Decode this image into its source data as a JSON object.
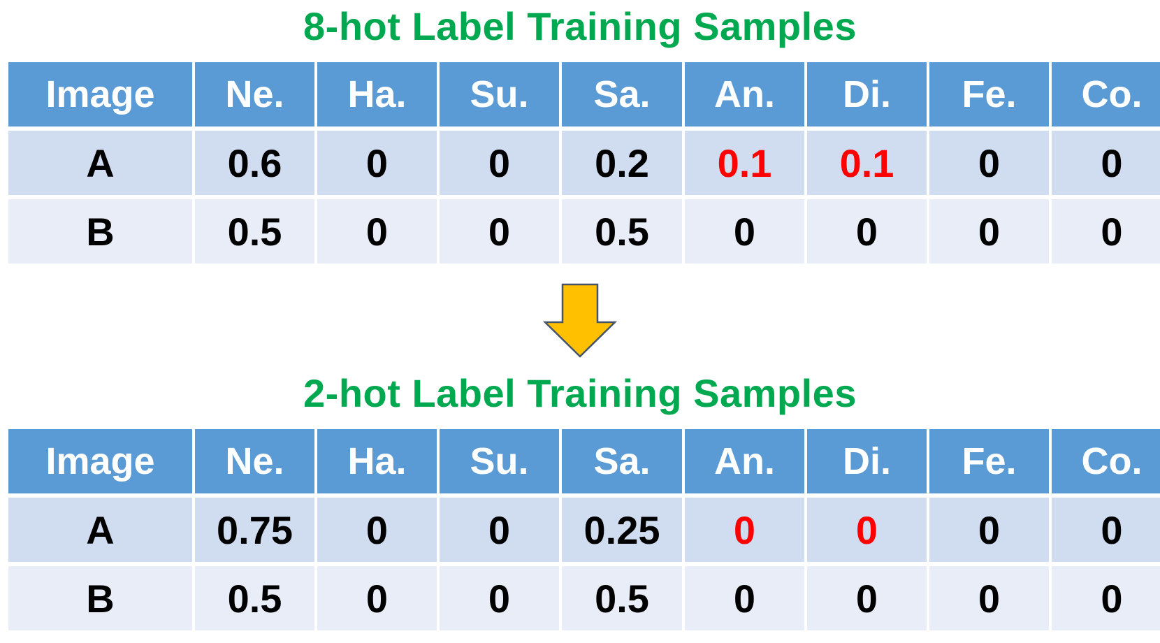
{
  "colors": {
    "title": "#00a84f",
    "header_bg": "#5b9bd5",
    "header_text": "#ffffff",
    "row_a_bg": "#d0dcef",
    "row_b_bg": "#e8edf7",
    "highlight": "#ff0000",
    "arrow_fill": "#ffc000",
    "arrow_stroke": "#44546a"
  },
  "top": {
    "title": "8-hot Label Training Samples",
    "headers": [
      "Image",
      "Ne.",
      "Ha.",
      "Su.",
      "Sa.",
      "An.",
      "Di.",
      "Fe.",
      "Co."
    ],
    "rows": [
      [
        "A",
        "0.6",
        "0",
        "0",
        "0.2",
        "0.1",
        "0.1",
        "0",
        "0"
      ],
      [
        "B",
        "0.5",
        "0",
        "0",
        "0.5",
        "0",
        "0",
        "0",
        "0"
      ]
    ]
  },
  "arrow_icon": "down-arrow-icon",
  "bottom": {
    "title": "2-hot Label Training Samples",
    "headers": [
      "Image",
      "Ne.",
      "Ha.",
      "Su.",
      "Sa.",
      "An.",
      "Di.",
      "Fe.",
      "Co."
    ],
    "rows": [
      [
        "A",
        "0.75",
        "0",
        "0",
        "0.25",
        "0",
        "0",
        "0",
        "0"
      ],
      [
        "B",
        "0.5",
        "0",
        "0",
        "0.5",
        "0",
        "0",
        "0",
        "0"
      ]
    ]
  }
}
